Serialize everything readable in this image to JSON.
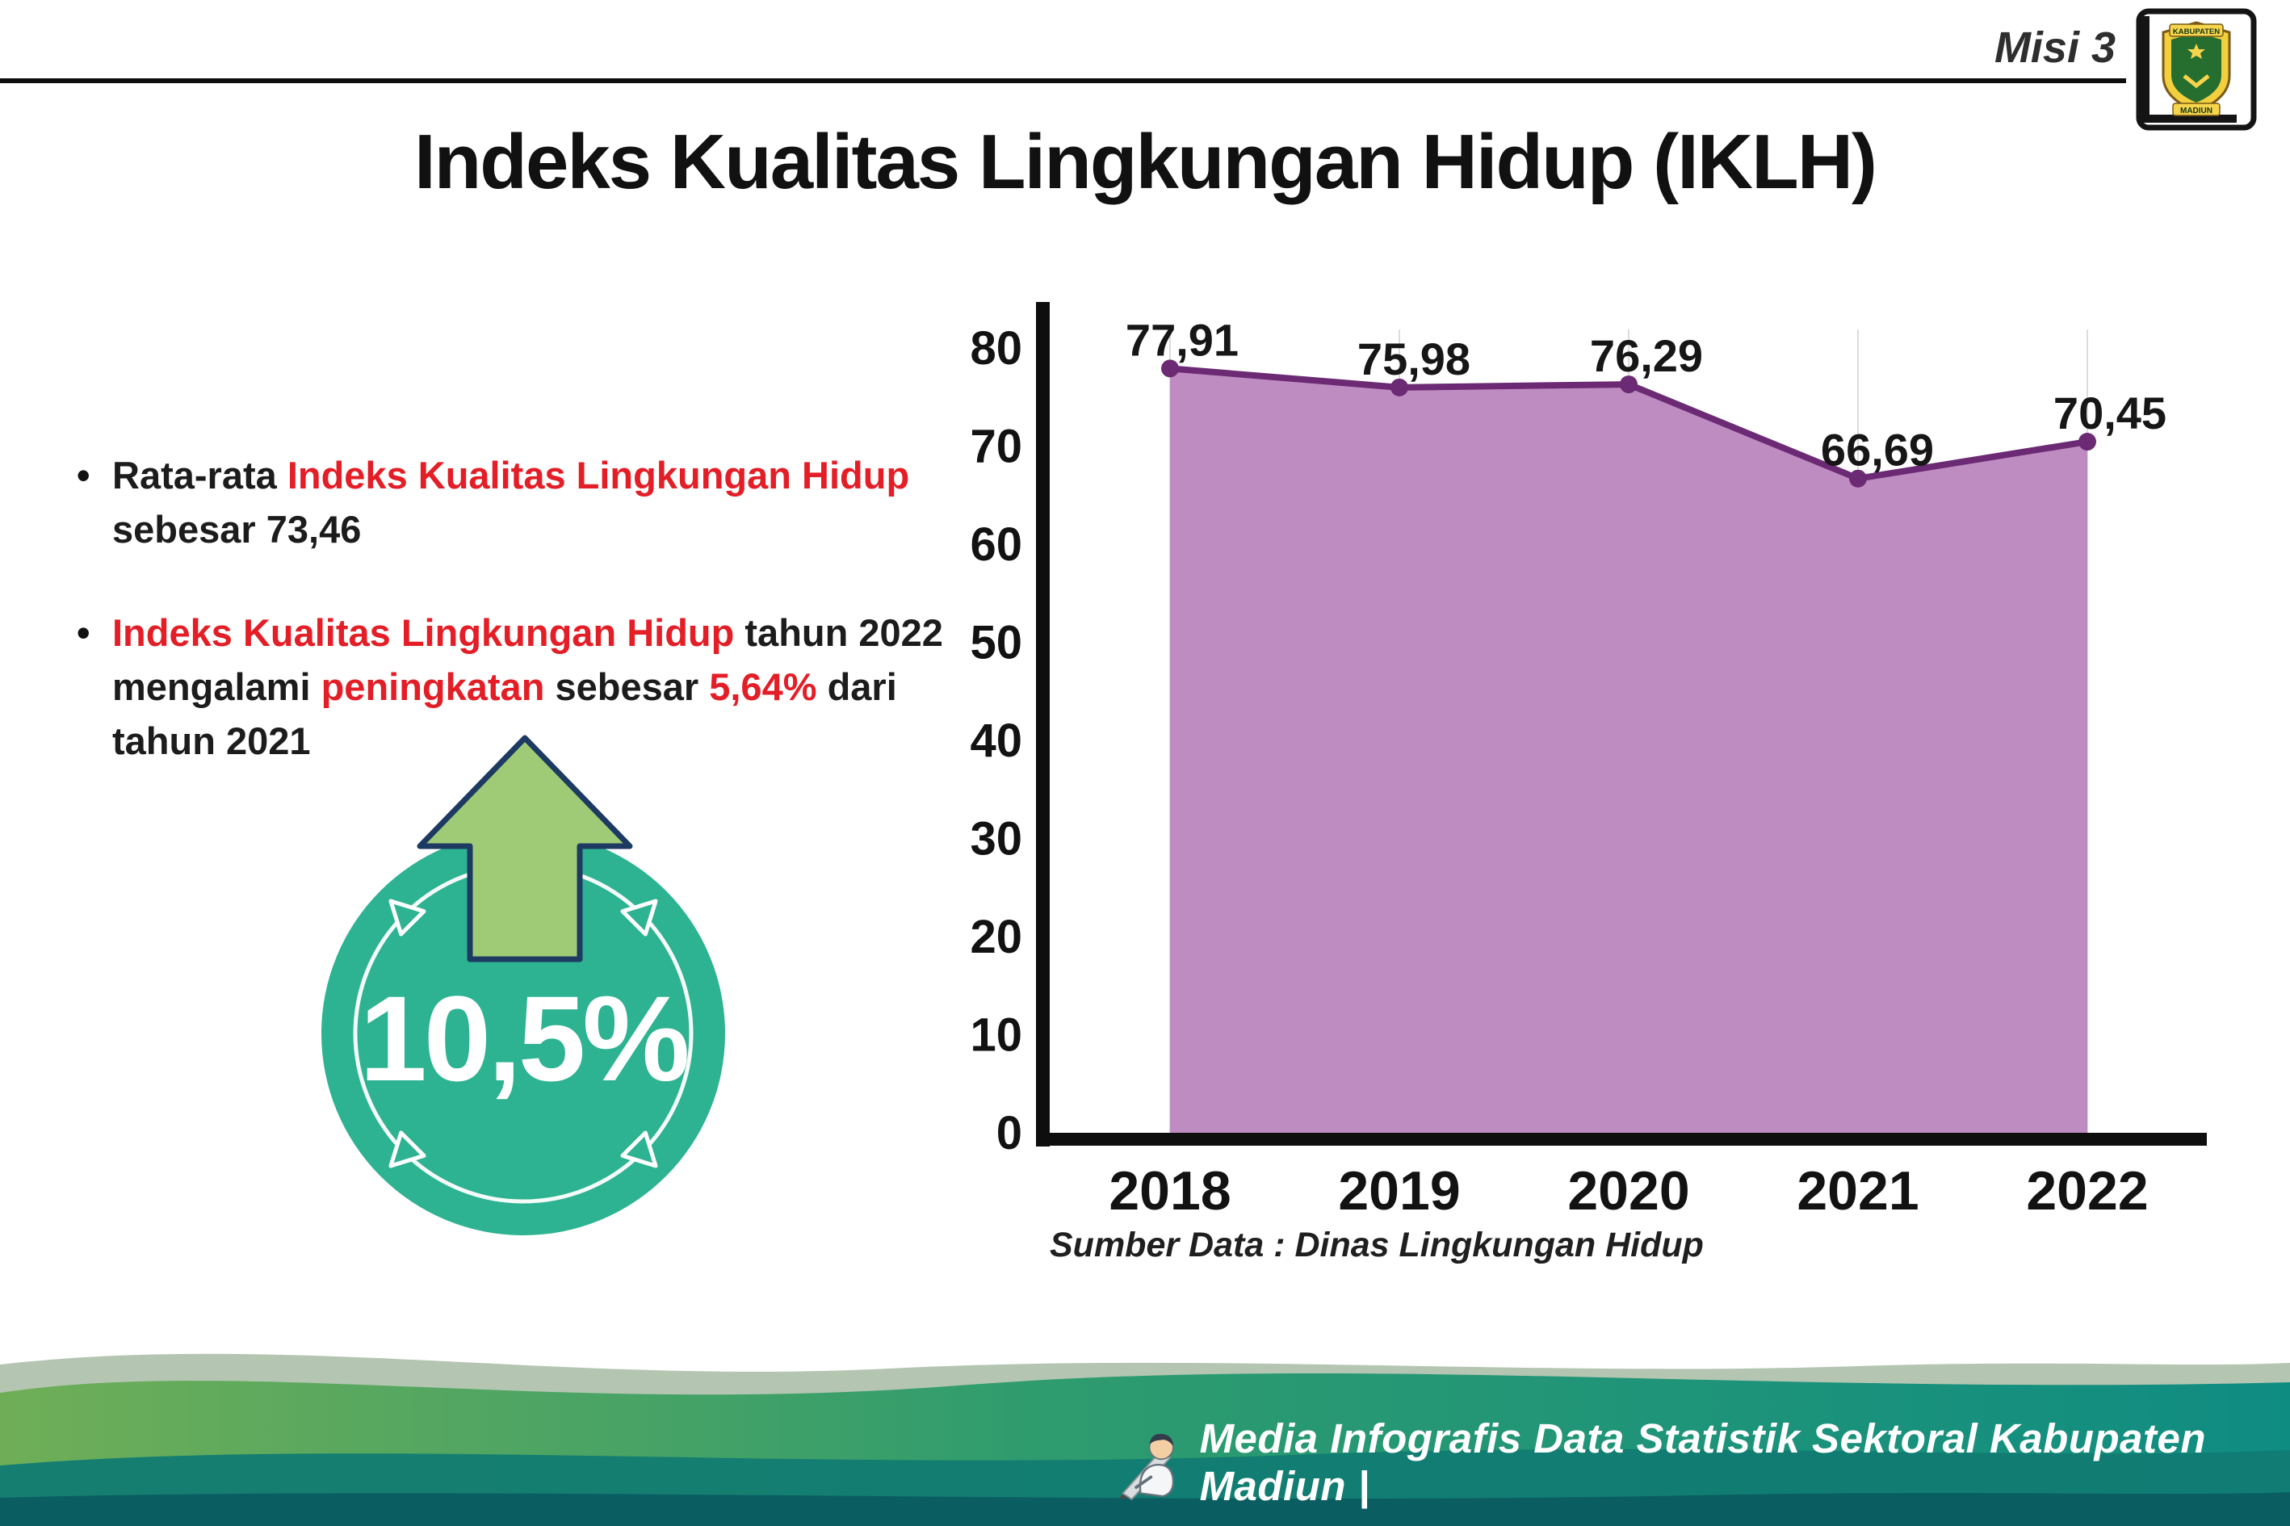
{
  "header": {
    "misi_label": "Misi 3",
    "title": "Indeks Kualitas Lingkungan Hidup (IKLH)",
    "logo": {
      "top_text": "KABUPATEN",
      "bottom_text": "MADIUN"
    }
  },
  "bullets": [
    {
      "segments": [
        {
          "t": "Rata-rata ",
          "c": "dark"
        },
        {
          "t": "Indeks Kualitas Lingkungan Hidup",
          "c": "red"
        },
        {
          "t": "\nsebesar 73,46",
          "c": "dark"
        }
      ]
    },
    {
      "segments": [
        {
          "t": "Indeks Kualitas Lingkungan Hidup",
          "c": "red"
        },
        {
          "t": " tahun 2022\nmengalami ",
          "c": "dark"
        },
        {
          "t": "peningkatan",
          "c": "red"
        },
        {
          "t": " sebesar ",
          "c": "dark"
        },
        {
          "t": "5,64%",
          "c": "red"
        },
        {
          "t": " dari\ntahun 2021",
          "c": "dark"
        }
      ]
    }
  ],
  "badge": {
    "value": "10,5%",
    "circle_color": "#2db391",
    "arrow_fill": "#a0cb76"
  },
  "chart_data": {
    "type": "area",
    "categories": [
      "2018",
      "2019",
      "2020",
      "2021",
      "2022"
    ],
    "series": [
      {
        "name": "IKLH",
        "values": [
          77.91,
          75.98,
          76.29,
          66.69,
          70.45
        ]
      }
    ],
    "value_labels": [
      "77,91",
      "75,98",
      "76,29",
      "66,69",
      "70,45"
    ],
    "title": "",
    "xlabel": "",
    "ylabel": "",
    "ylim": [
      0,
      80
    ],
    "ytick_step": 10,
    "grid": "vertical-light",
    "legend": "none",
    "line_color": "#6c2a74",
    "fill_color": "#bf8cc2"
  },
  "source_note": "Sumber Data : Dinas Lingkungan Hidup",
  "footer": {
    "text": "Media Infografis Data Statistik Sektoral Kabupaten Madiun |"
  },
  "colors": {
    "accent_red": "#e31e26",
    "teal": "#2db391",
    "purple_line": "#6c2a74",
    "purple_fill": "#bf8cc2",
    "footer_sage": "#b4c6b2",
    "footer_green": "#6fae57",
    "footer_mid": "#2f9c6e",
    "footer_teal": "#0f8c82",
    "footer_dark": "#117b72",
    "footer_deep": "#0a5e62"
  }
}
